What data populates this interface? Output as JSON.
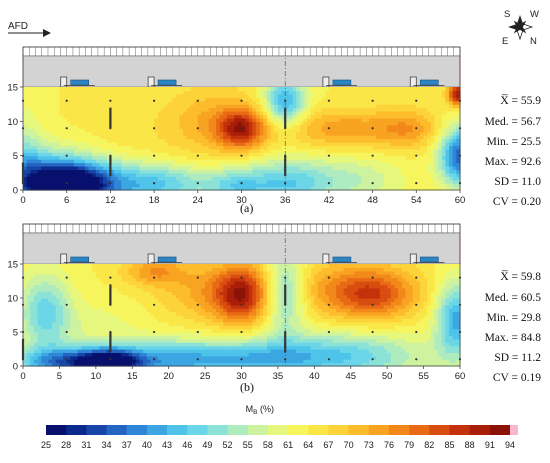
{
  "header": {
    "flow_label": "AFD",
    "compass": {
      "north": "N",
      "south": "S",
      "east": "E",
      "west": "W"
    }
  },
  "colorbar": {
    "title_main": "M",
    "title_sub": "B",
    "title_unit": " (%)",
    "ticks": [
      25,
      28,
      31,
      34,
      37,
      40,
      43,
      46,
      49,
      52,
      55,
      58,
      61,
      64,
      67,
      70,
      73,
      76,
      79,
      82,
      85,
      88,
      91,
      94
    ],
    "colors": [
      "#08106e",
      "#0c2a8c",
      "#1746a8",
      "#2465c2",
      "#2f86d6",
      "#3ba6e2",
      "#4ec4ea",
      "#6bd6e8",
      "#8ce2d6",
      "#aeebbf",
      "#cdf2a0",
      "#e6f77e",
      "#f6f55e",
      "#fbe648",
      "#fdd33a",
      "#fcbc2c",
      "#f8a322",
      "#f2881a",
      "#e86a14",
      "#d94d10",
      "#c4320c",
      "#a81e08",
      "#8a1206",
      "#f5b8cf"
    ]
  },
  "chart_data": [
    {
      "type": "heatmap",
      "caption": "(a)",
      "x_ticks": [
        "0",
        "6",
        "12",
        "18",
        "24",
        "30",
        "36",
        "42",
        "48",
        "54",
        "60"
      ],
      "y_ticks": [
        "0",
        "5",
        "10",
        "15"
      ],
      "xlim": [
        0,
        60
      ],
      "ylim": [
        0,
        15
      ],
      "base_value": 64,
      "hotspots": [
        {
          "x": 6,
          "y": 0.3,
          "v": 27,
          "sx": 2.8,
          "sy": 1.8
        },
        {
          "x": 3,
          "y": 1.5,
          "v": 38,
          "sx": 5,
          "sy": 3
        },
        {
          "x": 11,
          "y": 1,
          "v": 44,
          "sx": 5,
          "sy": 2.5
        },
        {
          "x": 20,
          "y": 1,
          "v": 50,
          "sx": 4,
          "sy": 2
        },
        {
          "x": 29,
          "y": 0.6,
          "v": 50,
          "sx": 3,
          "sy": 2
        },
        {
          "x": 36,
          "y": 1,
          "v": 48,
          "sx": 4,
          "sy": 2.5
        },
        {
          "x": 45,
          "y": 1.5,
          "v": 55,
          "sx": 5,
          "sy": 2.5
        },
        {
          "x": 60,
          "y": 5,
          "v": 35,
          "sx": 2,
          "sy": 3
        },
        {
          "x": 36,
          "y": 13,
          "v": 42,
          "sx": 2,
          "sy": 2.5
        },
        {
          "x": 0,
          "y": 5,
          "v": 56,
          "sx": 2,
          "sy": 5
        },
        {
          "x": 30,
          "y": 9,
          "v": 86,
          "sx": 2.3,
          "sy": 2
        },
        {
          "x": 26,
          "y": 10,
          "v": 73,
          "sx": 4.5,
          "sy": 3.5
        },
        {
          "x": 44,
          "y": 9,
          "v": 75,
          "sx": 6,
          "sy": 2
        },
        {
          "x": 53,
          "y": 9,
          "v": 73,
          "sx": 3,
          "sy": 2
        },
        {
          "x": 59.8,
          "y": 14,
          "v": 91,
          "sx": 1,
          "sy": 1.2
        },
        {
          "x": 14,
          "y": 7,
          "v": 66,
          "sx": 5,
          "sy": 4
        }
      ],
      "stats": {
        "mean": "X̅ = 55.9",
        "median": "Med. = 56.7",
        "min": "Min. = 25.5",
        "max": "Max. = 92.6",
        "sd": "SD = 11.0",
        "cv": "CV = 0.20"
      }
    },
    {
      "type": "heatmap",
      "caption": "(b)",
      "x_ticks": [
        "0",
        "5",
        "10",
        "15",
        "20",
        "25",
        "30",
        "35",
        "40",
        "45",
        "50",
        "55",
        "60"
      ],
      "y_ticks": [
        "0",
        "5",
        "10",
        "15"
      ],
      "xlim": [
        0,
        60
      ],
      "ylim": [
        0,
        15
      ],
      "base_value": 64,
      "hotspots": [
        {
          "x": 6,
          "y": 0.6,
          "v": 38,
          "sx": 5,
          "sy": 1.6
        },
        {
          "x": 12,
          "y": 0.4,
          "v": 34,
          "sx": 3,
          "sy": 1.5
        },
        {
          "x": 20,
          "y": 1,
          "v": 44,
          "sx": 6,
          "sy": 2
        },
        {
          "x": 32,
          "y": 1.2,
          "v": 50,
          "sx": 6,
          "sy": 2
        },
        {
          "x": 44,
          "y": 1.5,
          "v": 47,
          "sx": 8,
          "sy": 2.5
        },
        {
          "x": 3,
          "y": 8,
          "v": 48,
          "sx": 2.5,
          "sy": 4
        },
        {
          "x": 36,
          "y": 11,
          "v": 46,
          "sx": 2,
          "sy": 4
        },
        {
          "x": 59.5,
          "y": 7,
          "v": 42,
          "sx": 2,
          "sy": 4
        },
        {
          "x": 30,
          "y": 10.5,
          "v": 84,
          "sx": 2.5,
          "sy": 3
        },
        {
          "x": 26,
          "y": 11,
          "v": 74,
          "sx": 5,
          "sy": 3
        },
        {
          "x": 48,
          "y": 10.5,
          "v": 79,
          "sx": 4,
          "sy": 2.5
        },
        {
          "x": 44,
          "y": 11.5,
          "v": 73,
          "sx": 7,
          "sy": 3
        },
        {
          "x": 18,
          "y": 14,
          "v": 75,
          "sx": 3,
          "sy": 1.5
        },
        {
          "x": 10,
          "y": 6,
          "v": 60,
          "sx": 5,
          "sy": 3
        }
      ],
      "stats": {
        "mean": "X̅ = 59.8",
        "median": "Med. = 60.5",
        "min": "Min. = 29.8",
        "max": "Max. = 84.8",
        "sd": "SD = 11.2",
        "cv": "CV = 0.19"
      }
    }
  ]
}
